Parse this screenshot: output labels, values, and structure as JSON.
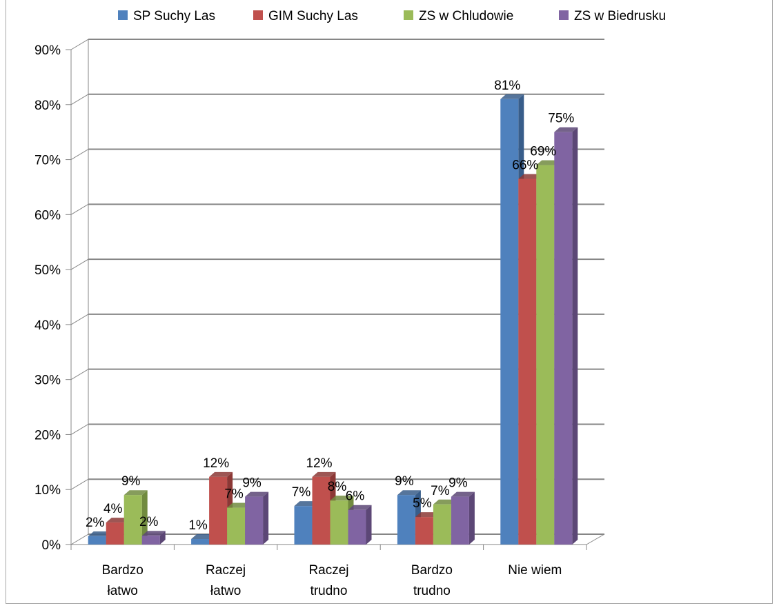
{
  "chart_data": {
    "type": "bar",
    "title": "",
    "xlabel": "",
    "ylabel": "",
    "ylim": [
      0,
      90
    ],
    "y_ticks": [
      "0%",
      "10%",
      "20%",
      "30%",
      "40%",
      "50%",
      "60%",
      "70%",
      "80%",
      "90%"
    ],
    "grid": true,
    "legend_position": "top",
    "categories": [
      [
        "Bardzo",
        "łatwo"
      ],
      [
        "Raczej",
        "łatwo"
      ],
      [
        "Raczej",
        "trudno"
      ],
      [
        "Bardzo",
        "trudno"
      ],
      [
        "Nie wiem"
      ]
    ],
    "series": [
      {
        "name": "SP Suchy Las",
        "color": "#4f81bd",
        "side": "#385d8a",
        "values": [
          1.5,
          1,
          7,
          9,
          81
        ],
        "labels": [
          "2%",
          "1%",
          "7%",
          "9%",
          "81%"
        ]
      },
      {
        "name": "GIM Suchy Las",
        "color": "#c0504d",
        "side": "#8c3836",
        "values": [
          4,
          12.3,
          12.3,
          5,
          66.5
        ],
        "labels": [
          "4%",
          "12%",
          "12%",
          "5%",
          "66%"
        ]
      },
      {
        "name": "ZS w Chludowie",
        "color": "#9bbb59",
        "side": "#718b3f",
        "values": [
          9,
          6.7,
          8,
          7.3,
          69
        ],
        "labels": [
          "9%",
          "7%",
          "8%",
          "7%",
          "69%"
        ]
      },
      {
        "name": "ZS w Biedrusku",
        "color": "#8064a2",
        "side": "#5c4776",
        "values": [
          1.6,
          8.7,
          6.3,
          8.7,
          75
        ],
        "labels": [
          "2%",
          "9%",
          "6%",
          "9%",
          "75%"
        ]
      }
    ]
  }
}
